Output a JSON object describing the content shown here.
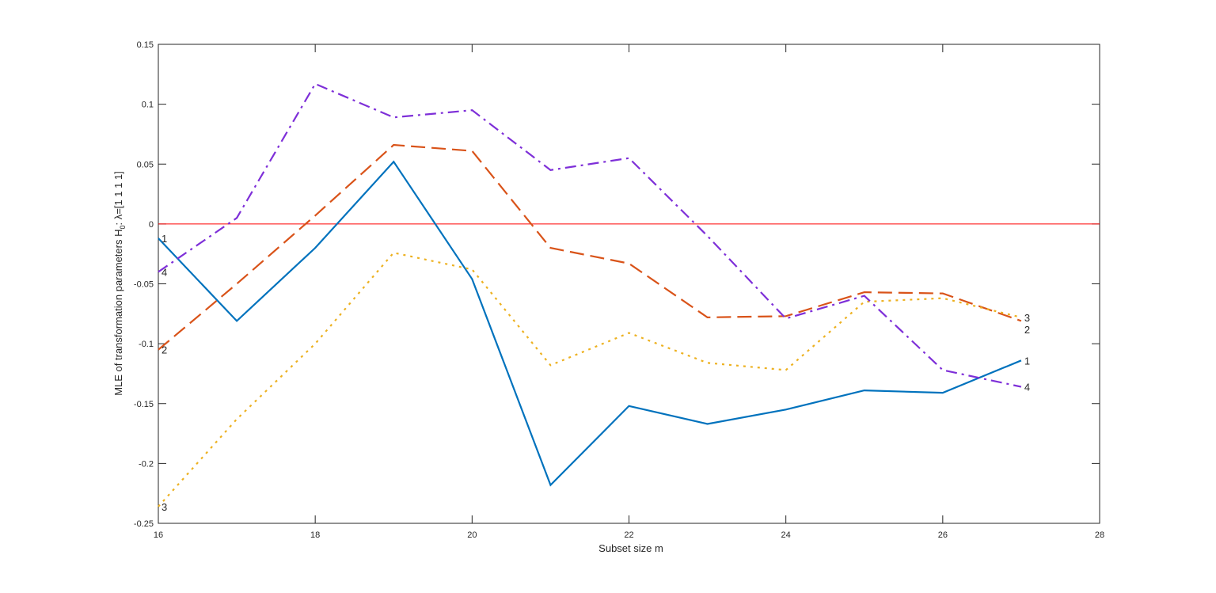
{
  "chart_data": {
    "type": "line",
    "title": "",
    "xlabel": "Subset size m",
    "ylabel_parts": {
      "pre": "MLE  of  transformation  parameters  H",
      "sub": "0",
      "post": ":  λ=[1  1  1  1]"
    },
    "xlim": [
      16,
      28
    ],
    "ylim": [
      -0.25,
      0.15
    ],
    "xticks": [
      "16",
      "18",
      "20",
      "22",
      "24",
      "26",
      "28"
    ],
    "yticks": [
      "-0.25",
      "-0.2",
      "-0.15",
      "-0.1",
      "-0.05",
      "0",
      "0.05",
      "0.1",
      "0.15"
    ],
    "grid": false,
    "reference_line": {
      "y": 0,
      "color": "#ff0000"
    },
    "x": [
      16,
      17,
      18,
      19,
      20,
      21,
      22,
      23,
      24,
      25,
      26,
      27
    ],
    "series": [
      {
        "name": "1",
        "color": "#0072bd",
        "style": "solid",
        "values": [
          -0.012,
          -0.081,
          -0.02,
          0.052,
          -0.046,
          -0.218,
          -0.152,
          -0.167,
          -0.155,
          -0.139,
          -0.141,
          -0.114
        ]
      },
      {
        "name": "2",
        "color": "#d95319",
        "style": "dashed",
        "values": [
          -0.105,
          -0.05,
          0.007,
          0.066,
          0.061,
          -0.02,
          -0.033,
          -0.078,
          -0.077,
          -0.057,
          -0.058,
          -0.081
        ]
      },
      {
        "name": "3",
        "color": "#edb120",
        "style": "dotted",
        "values": [
          -0.236,
          -0.163,
          -0.1,
          -0.024,
          -0.038,
          -0.118,
          -0.091,
          -0.116,
          -0.122,
          -0.065,
          -0.062,
          -0.078
        ]
      },
      {
        "name": "4",
        "color": "#7e2fd8",
        "style": "dashdot",
        "values": [
          -0.04,
          0.005,
          0.117,
          0.089,
          0.095,
          0.045,
          0.055,
          -0.01,
          -0.079,
          -0.06,
          -0.122,
          -0.136
        ]
      }
    ]
  }
}
